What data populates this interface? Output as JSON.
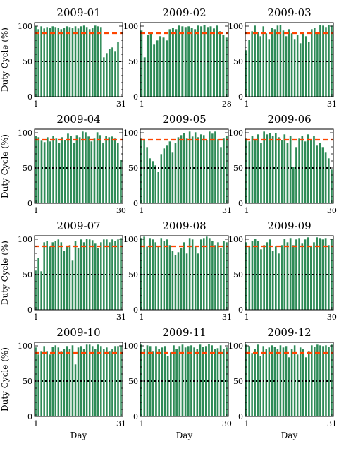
{
  "figure": {
    "ylabel": "Duty Cycle (%)",
    "xlabel": "Day",
    "yticks": [
      "0",
      "50",
      "100"
    ]
  },
  "chart_data": [
    {
      "type": "bar",
      "title": "2009-01",
      "ylim": [
        0,
        105
      ],
      "xticks": [
        "1",
        "31"
      ],
      "ylabel": "Duty Cycle (%)",
      "xlabel": "",
      "values": [
        100,
        96,
        100,
        97,
        99,
        98,
        100,
        99,
        98,
        96,
        98,
        100,
        99,
        98,
        100,
        97,
        100,
        101,
        99,
        96,
        98,
        101,
        100,
        99,
        56,
        62,
        68,
        70,
        65,
        78,
        0
      ],
      "reference_lines": [
        90,
        50
      ]
    },
    {
      "type": "bar",
      "title": "2009-02",
      "ylim": [
        0,
        105
      ],
      "xticks": [
        "1",
        "28"
      ],
      "ylabel": "",
      "xlabel": "",
      "values": [
        94,
        56,
        88,
        90,
        74,
        80,
        86,
        84,
        80,
        96,
        98,
        96,
        101,
        100,
        99,
        100,
        98,
        96,
        101,
        100,
        102,
        99,
        100,
        97,
        101,
        93,
        88,
        84
      ],
      "reference_lines": [
        90,
        50
      ]
    },
    {
      "type": "bar",
      "title": "2009-03",
      "ylim": [
        0,
        105
      ],
      "xticks": [
        "1",
        "31"
      ],
      "ylabel": "",
      "xlabel": "",
      "values": [
        66,
        81,
        93,
        101,
        92,
        86,
        100,
        90,
        82,
        98,
        96,
        101,
        102,
        94,
        86,
        96,
        90,
        82,
        88,
        76,
        92,
        86,
        78,
        96,
        98,
        91,
        102,
        101,
        99,
        102,
        101
      ],
      "reference_lines": [
        90,
        50
      ]
    },
    {
      "type": "bar",
      "title": "2009-04",
      "ylim": [
        0,
        105
      ],
      "xticks": [
        "1",
        "30"
      ],
      "ylabel": "Duty Cycle (%)",
      "xlabel": "",
      "values": [
        96,
        94,
        89,
        87,
        94,
        88,
        96,
        92,
        86,
        94,
        90,
        99,
        96,
        86,
        97,
        94,
        102,
        101,
        95,
        88,
        92,
        101,
        97,
        86,
        96,
        94,
        95,
        92,
        86,
        62
      ],
      "reference_lines": [
        90,
        50
      ]
    },
    {
      "type": "bar",
      "title": "2009-05",
      "ylim": [
        0,
        105
      ],
      "xticks": [
        "1",
        "31"
      ],
      "ylabel": "",
      "xlabel": "",
      "values": [
        92,
        90,
        80,
        64,
        60,
        54,
        45,
        70,
        78,
        82,
        88,
        72,
        86,
        94,
        97,
        100,
        92,
        102,
        95,
        101,
        94,
        98,
        97,
        90,
        102,
        99,
        102,
        91,
        80,
        92,
        96
      ],
      "reference_lines": [
        90,
        50
      ]
    },
    {
      "type": "bar",
      "title": "2009-06",
      "ylim": [
        0,
        105
      ],
      "xticks": [
        "1",
        "30"
      ],
      "ylabel": "",
      "xlabel": "",
      "values": [
        92,
        88,
        96,
        90,
        98,
        86,
        102,
        98,
        100,
        96,
        100,
        94,
        90,
        98,
        86,
        96,
        52,
        80,
        92,
        96,
        88,
        98,
        90,
        96,
        82,
        86,
        80,
        72,
        64,
        48
      ],
      "reference_lines": [
        90,
        50
      ]
    },
    {
      "type": "bar",
      "title": "2009-07",
      "ylim": [
        0,
        105
      ],
      "xticks": [
        "1",
        "31"
      ],
      "ylabel": "Duty Cycle (%)",
      "xlabel": "",
      "values": [
        56,
        74,
        55,
        96,
        98,
        90,
        96,
        98,
        100,
        96,
        84,
        90,
        92,
        70,
        98,
        88,
        100,
        96,
        101,
        100,
        99,
        94,
        88,
        96,
        100,
        100,
        96,
        100,
        98,
        100,
        102
      ],
      "reference_lines": [
        90,
        50
      ]
    },
    {
      "type": "bar",
      "title": "2009-08",
      "ylim": [
        0,
        105
      ],
      "xticks": [
        "1",
        "31"
      ],
      "ylabel": "",
      "xlabel": "",
      "values": [
        102,
        104,
        90,
        102,
        100,
        96,
        90,
        102,
        98,
        100,
        92,
        84,
        78,
        82,
        88,
        96,
        80,
        102,
        100,
        90,
        80,
        100,
        102,
        104,
        102,
        98,
        92,
        96,
        88,
        98,
        96
      ],
      "reference_lines": [
        90,
        50
      ]
    },
    {
      "type": "bar",
      "title": "2009-09",
      "ylim": [
        0,
        105
      ],
      "xticks": [
        "1",
        "30"
      ],
      "ylabel": "",
      "xlabel": "",
      "values": [
        96,
        90,
        98,
        101,
        98,
        86,
        92,
        96,
        100,
        84,
        90,
        80,
        92,
        101,
        96,
        102,
        92,
        100,
        102,
        94,
        100,
        103,
        90,
        96,
        103,
        102,
        100,
        102,
        92,
        101
      ],
      "reference_lines": [
        90,
        50
      ]
    },
    {
      "type": "bar",
      "title": "2009-10",
      "ylim": [
        0,
        105
      ],
      "xticks": [
        "1",
        "31"
      ],
      "ylabel": "Duty Cycle (%)",
      "xlabel": "Day",
      "values": [
        98,
        88,
        92,
        100,
        92,
        88,
        99,
        101,
        98,
        92,
        96,
        100,
        96,
        101,
        74,
        98,
        100,
        96,
        102,
        102,
        100,
        96,
        102,
        100,
        96,
        98,
        92,
        96,
        100,
        100,
        101
      ],
      "reference_lines": [
        90,
        50
      ]
    },
    {
      "type": "bar",
      "title": "2009-11",
      "ylim": [
        0,
        105
      ],
      "xticks": [
        "1",
        "30"
      ],
      "ylabel": "",
      "xlabel": "Day",
      "values": [
        102,
        96,
        101,
        100,
        92,
        100,
        96,
        98,
        100,
        86,
        91,
        101,
        96,
        100,
        102,
        98,
        100,
        101,
        98,
        96,
        102,
        99,
        100,
        103,
        101,
        96,
        97,
        101,
        96,
        98
      ],
      "reference_lines": [
        90,
        50
      ]
    },
    {
      "type": "bar",
      "title": "2009-12",
      "ylim": [
        0,
        105
      ],
      "xticks": [
        "1",
        "31"
      ],
      "ylabel": "",
      "xlabel": "Day",
      "values": [
        102,
        100,
        90,
        96,
        102,
        86,
        100,
        96,
        98,
        101,
        99,
        96,
        101,
        98,
        100,
        84,
        96,
        101,
        88,
        98,
        96,
        84,
        92,
        101,
        99,
        102,
        101,
        100,
        101,
        99,
        102
      ],
      "reference_lines": [
        90,
        50
      ]
    }
  ],
  "colors": {
    "bar": "#2e8b57",
    "bar_edge": "#ffffff",
    "ref_high": "#ff4500",
    "ref_low": "#000000",
    "axes": "#000000"
  }
}
